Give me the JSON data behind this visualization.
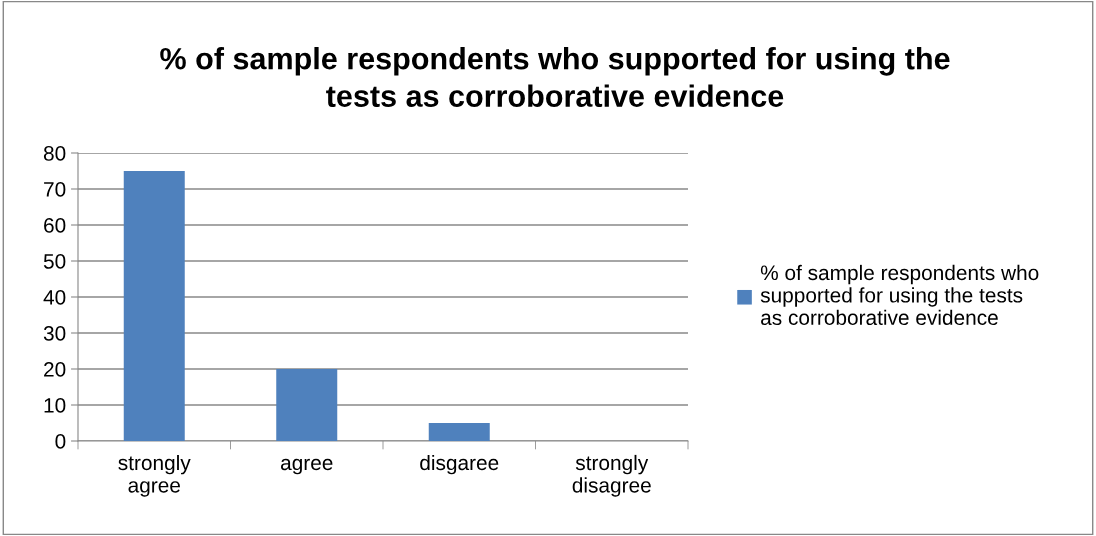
{
  "chart_data": {
    "type": "bar",
    "title": "% of sample respondents who supported for using the\ntests as corroborative evidence",
    "categories": [
      "strongly\nagree",
      "agree",
      "disgaree",
      "strongly\ndisagree"
    ],
    "series": [
      {
        "name": "% of sample respondents who\nsupported for using the tests\nas corroborative evidence",
        "color": "#4f81bd",
        "values": [
          75,
          20,
          5,
          0
        ]
      }
    ],
    "ylim": [
      0,
      80
    ],
    "yticks": [
      0,
      10,
      20,
      30,
      40,
      50,
      60,
      70,
      80
    ],
    "grid": "y",
    "legend": "right"
  }
}
